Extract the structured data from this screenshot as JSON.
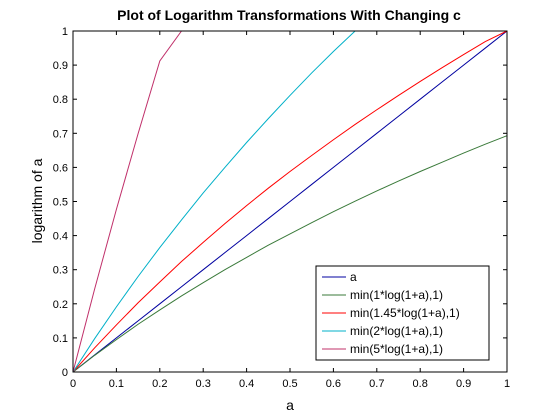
{
  "chart_data": {
    "type": "line",
    "title": "Plot of Logarithm Transformations With Changing c",
    "xlabel": "a",
    "ylabel": "logarithm of a",
    "xlim": [
      0,
      1
    ],
    "ylim": [
      0,
      1
    ],
    "xticks": [
      "0",
      "0.1",
      "0.2",
      "0.3",
      "0.4",
      "0.5",
      "0.6",
      "0.7",
      "0.8",
      "0.9",
      "1"
    ],
    "yticks": [
      "0",
      "0.1",
      "0.2",
      "0.3",
      "0.4",
      "0.5",
      "0.6",
      "0.7",
      "0.8",
      "0.9",
      "1"
    ],
    "grid": false,
    "legend_position": "bottom-right",
    "x": [
      0,
      0.05,
      0.1,
      0.15,
      0.2,
      0.25,
      0.3,
      0.35,
      0.4,
      0.45,
      0.5,
      0.55,
      0.6,
      0.65,
      0.7,
      0.75,
      0.8,
      0.85,
      0.9,
      0.95,
      1
    ],
    "series": [
      {
        "name": "a",
        "color": "#0000a0",
        "values": [
          0,
          0.05,
          0.1,
          0.15,
          0.2,
          0.25,
          0.3,
          0.35,
          0.4,
          0.45,
          0.5,
          0.55,
          0.6,
          0.65,
          0.7,
          0.75,
          0.8,
          0.85,
          0.9,
          0.95,
          1
        ]
      },
      {
        "name": "min(1*log(1+a),1)",
        "color": "#3a7a3a",
        "values": [
          0,
          0.049,
          0.095,
          0.14,
          0.182,
          0.223,
          0.262,
          0.3,
          0.336,
          0.372,
          0.405,
          0.438,
          0.47,
          0.501,
          0.531,
          0.56,
          0.588,
          0.615,
          0.642,
          0.668,
          0.693
        ]
      },
      {
        "name": "min(1.45*log(1+a),1)",
        "color": "#ff0000",
        "values": [
          0,
          0.071,
          0.138,
          0.203,
          0.264,
          0.324,
          0.38,
          0.435,
          0.488,
          0.539,
          0.588,
          0.635,
          0.681,
          0.726,
          0.769,
          0.811,
          0.852,
          0.892,
          0.931,
          0.969,
          1
        ]
      },
      {
        "name": "min(2*log(1+a),1)",
        "color": "#00b0c8",
        "values": [
          0,
          0.098,
          0.191,
          0.28,
          0.365,
          0.446,
          0.525,
          0.6,
          0.673,
          0.743,
          0.811,
          0.877,
          0.94,
          1,
          1,
          1,
          1,
          1,
          1,
          1,
          1
        ]
      },
      {
        "name": "min(5*log(1+a),1)",
        "color": "#c0306a",
        "values": [
          0,
          0.244,
          0.477,
          0.699,
          0.912,
          1,
          1,
          1,
          1,
          1,
          1,
          1,
          1,
          1,
          1,
          1,
          1,
          1,
          1,
          1,
          1
        ]
      }
    ]
  }
}
